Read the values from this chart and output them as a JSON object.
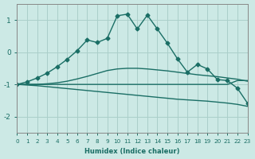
{
  "xlabel": "Humidex (Indice chaleur)",
  "background_color": "#cce9e5",
  "grid_color": "#aacfca",
  "line_color": "#1a6e65",
  "xlim": [
    0,
    23
  ],
  "ylim": [
    -2.5,
    1.5
  ],
  "yticks": [
    -2,
    -1,
    0,
    1
  ],
  "xticks": [
    0,
    1,
    2,
    3,
    4,
    5,
    6,
    7,
    8,
    9,
    10,
    11,
    12,
    13,
    14,
    15,
    16,
    17,
    18,
    19,
    20,
    21,
    22,
    23
  ],
  "series": [
    {
      "x": [
        0,
        1,
        2,
        3,
        4,
        5,
        6,
        7,
        8,
        9,
        10,
        11,
        12,
        13,
        14,
        15,
        16,
        17,
        18,
        19,
        20,
        21,
        22,
        23
      ],
      "y": [
        -1.0,
        -1.0,
        -1.0,
        -1.0,
        -1.0,
        -1.0,
        -1.0,
        -1.0,
        -1.0,
        -1.0,
        -1.0,
        -1.0,
        -1.0,
        -1.0,
        -1.0,
        -1.0,
        -1.0,
        -1.0,
        -1.0,
        -1.0,
        -1.0,
        -1.0,
        -0.88,
        -0.88
      ],
      "marker": false,
      "linewidth": 1.0
    },
    {
      "x": [
        0,
        1,
        2,
        3,
        4,
        5,
        6,
        7,
        8,
        9,
        10,
        11,
        12,
        13,
        14,
        15,
        16,
        17,
        18,
        19,
        20,
        21,
        22,
        23
      ],
      "y": [
        -1.0,
        -1.02,
        -1.04,
        -1.07,
        -1.1,
        -1.13,
        -1.16,
        -1.19,
        -1.22,
        -1.25,
        -1.28,
        -1.31,
        -1.34,
        -1.37,
        -1.4,
        -1.43,
        -1.46,
        -1.48,
        -1.5,
        -1.52,
        -1.55,
        -1.58,
        -1.62,
        -1.68
      ],
      "marker": false,
      "linewidth": 1.0
    },
    {
      "x": [
        0,
        1,
        2,
        3,
        4,
        5,
        6,
        7,
        8,
        9,
        10,
        11,
        12,
        13,
        14,
        15,
        16,
        17,
        18,
        19,
        20,
        21,
        22,
        23
      ],
      "y": [
        -1.0,
        -1.0,
        -1.0,
        -0.98,
        -0.95,
        -0.9,
        -0.83,
        -0.75,
        -0.66,
        -0.57,
        -0.52,
        -0.5,
        -0.5,
        -0.52,
        -0.55,
        -0.58,
        -0.62,
        -0.66,
        -0.7,
        -0.73,
        -0.76,
        -0.8,
        -0.84,
        -0.9
      ],
      "marker": false,
      "linewidth": 1.0
    },
    {
      "x": [
        0,
        1,
        2,
        3,
        4,
        5,
        6,
        7,
        8,
        9,
        10,
        11,
        12,
        13,
        14,
        15,
        16,
        17,
        18,
        19,
        20,
        21,
        22,
        23
      ],
      "y": [
        -1.0,
        -0.92,
        -0.8,
        -0.65,
        -0.45,
        -0.22,
        0.05,
        0.38,
        0.3,
        0.43,
        1.13,
        1.18,
        0.72,
        1.15,
        0.72,
        0.28,
        -0.2,
        -0.62,
        -0.38,
        -0.52,
        -0.85,
        -0.88,
        -1.12,
        -1.58
      ],
      "marker": true,
      "markersize": 2.5,
      "linewidth": 1.0
    }
  ]
}
